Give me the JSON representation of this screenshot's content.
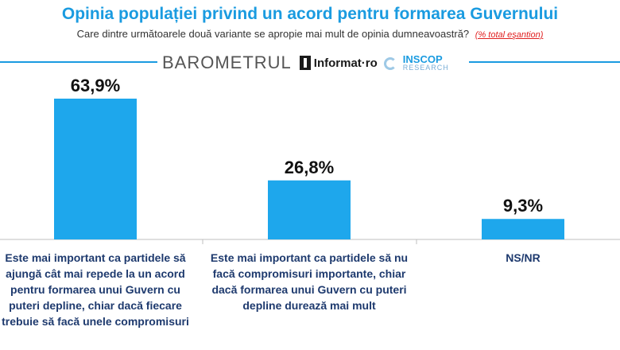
{
  "header": {
    "title": "Opinia populației privind un acord pentru formarea Guvernului",
    "subtitle": "Care dintre următoarele două variante se apropie mai mult de opinia dumneavoastră?",
    "note": "(% total eşantion)"
  },
  "branding": {
    "barometrul": "BAROMETRUL",
    "informat": "Informat·ro",
    "inscop": "INSCOP",
    "research": "RESEARCH"
  },
  "colors": {
    "bar": "#1ea7ec",
    "title": "#1a9be0",
    "category_text": "#1e3a6e"
  },
  "chart_data": {
    "type": "bar",
    "categories": [
      "Este mai important ca partidele să ajungă cât mai repede la un acord pentru formarea unui Guvern cu puteri depline, chiar dacă fiecare trebuie să facă unele compromisuri",
      "Este mai important ca partidele să nu facă compromisuri importante, chiar dacă formarea unui Guvern cu puteri depline durează mai mult",
      "NS/NR"
    ],
    "values": [
      63.9,
      26.8,
      9.3
    ],
    "value_labels": [
      "63,9%",
      "26,8%",
      "9,3%"
    ],
    "ylim": [
      0,
      100
    ],
    "grid": false,
    "legend": "none"
  }
}
